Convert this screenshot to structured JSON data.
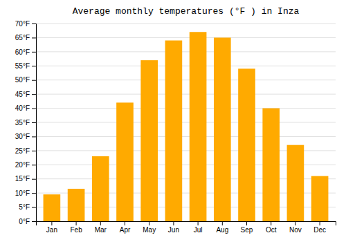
{
  "chart_data": {
    "type": "bar",
    "title": "Average monthly temperatures (°F ) in Inza",
    "categories": [
      "Jan",
      "Feb",
      "Mar",
      "Apr",
      "May",
      "Jun",
      "Jul",
      "Aug",
      "Sep",
      "Oct",
      "Nov",
      "Dec"
    ],
    "values": [
      9.5,
      11.5,
      23.0,
      42.0,
      57.0,
      64.0,
      67.0,
      65.0,
      54.0,
      40.0,
      27.0,
      16.0
    ],
    "color": "#FFAA00",
    "ylim": [
      0,
      70
    ],
    "yticks": [
      {
        "value": 0,
        "label": "0°F"
      },
      {
        "value": 5,
        "label": "5°F"
      },
      {
        "value": 10,
        "label": "10°F"
      },
      {
        "value": 15,
        "label": "15°F"
      },
      {
        "value": 20,
        "label": "20°F"
      },
      {
        "value": 25,
        "label": "25°F"
      },
      {
        "value": 30,
        "label": "30°F"
      },
      {
        "value": 35,
        "label": "35°F"
      },
      {
        "value": 40,
        "label": "40°F"
      },
      {
        "value": 45,
        "label": "45°F"
      },
      {
        "value": 50,
        "label": "50°F"
      },
      {
        "value": 55,
        "label": "55°F"
      },
      {
        "value": 60,
        "label": "60°F"
      },
      {
        "value": 65,
        "label": "65°F"
      },
      {
        "value": 70,
        "label": "70°F"
      }
    ],
    "grid": true
  }
}
